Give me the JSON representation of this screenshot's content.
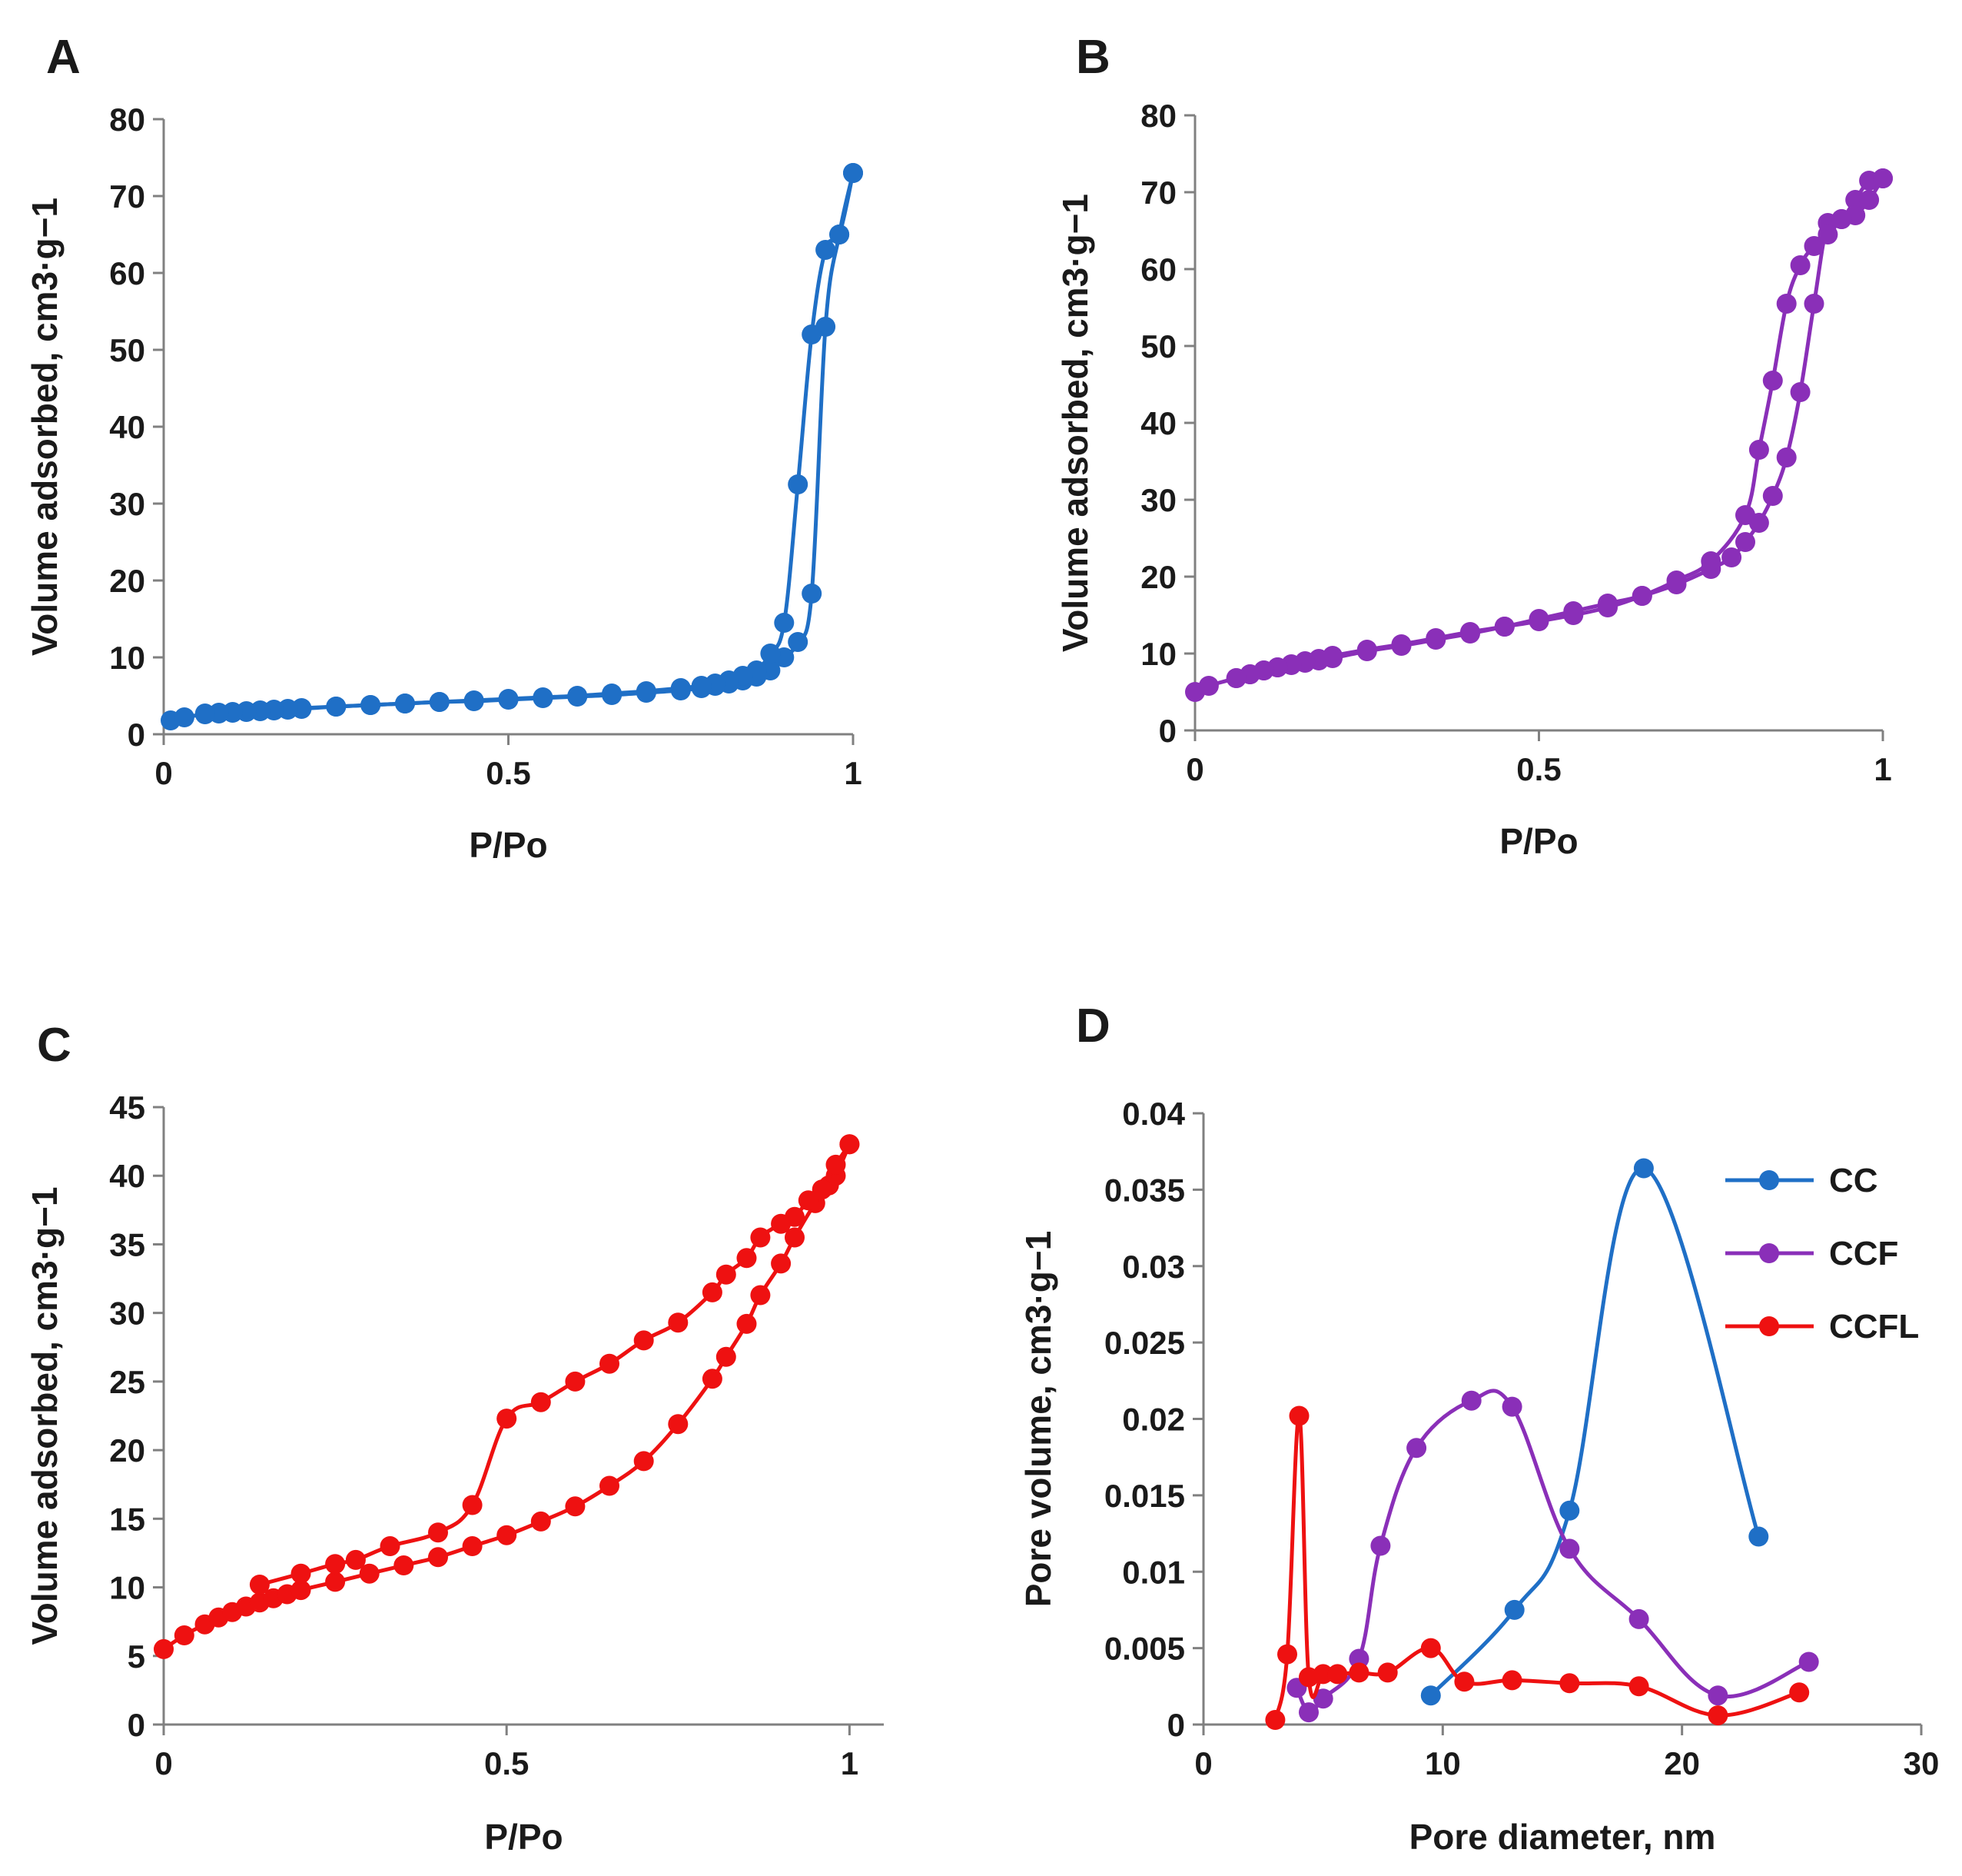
{
  "chart_data": [
    {
      "panel": "A",
      "type": "scatter",
      "xlabel": "P/Po",
      "ylabel": "Volume adsorbed, cm3·g−1",
      "xlim": [
        0,
        1
      ],
      "ylim": [
        0,
        80
      ],
      "xticks": [
        "0",
        "0.5",
        "1"
      ],
      "yticks": [
        "0",
        "10",
        "20",
        "30",
        "40",
        "50",
        "60",
        "70",
        "80"
      ],
      "color": "#1f6fc6",
      "series": [
        {
          "x": [
            0.01,
            0.03,
            0.06,
            0.08,
            0.1,
            0.12,
            0.14,
            0.16,
            0.18,
            0.2,
            0.25,
            0.3,
            0.35,
            0.4,
            0.45,
            0.5,
            0.55,
            0.6,
            0.65,
            0.7,
            0.75,
            0.78,
            0.8,
            0.82,
            0.84,
            0.86,
            0.88,
            0.9,
            0.92,
            0.94,
            0.96,
            0.98,
            1.0
          ],
          "y": [
            1.8,
            2.2,
            2.6,
            2.7,
            2.8,
            2.9,
            3.0,
            3.1,
            3.2,
            3.3,
            3.6,
            3.8,
            4.0,
            4.2,
            4.3,
            4.5,
            4.7,
            4.9,
            5.1,
            5.4,
            5.7,
            6.0,
            6.3,
            6.6,
            7.0,
            7.5,
            8.3,
            10.0,
            12.0,
            18.3,
            53.0,
            65.0,
            73.0
          ]
        },
        {
          "x": [
            1.0,
            0.98,
            0.96,
            0.94,
            0.92,
            0.9,
            0.88,
            0.86,
            0.84,
            0.82,
            0.8,
            0.78,
            0.75,
            0.7,
            0.65,
            0.6,
            0.55,
            0.5,
            0.45,
            0.4,
            0.35,
            0.3,
            0.25,
            0.2,
            0.18,
            0.16,
            0.14,
            0.12,
            0.1,
            0.08,
            0.06
          ],
          "y": [
            73.0,
            65.0,
            63.0,
            52.0,
            32.5,
            14.5,
            10.5,
            8.3,
            7.6,
            7.0,
            6.6,
            6.3,
            6.0,
            5.6,
            5.3,
            5.0,
            4.8,
            4.6,
            4.4,
            4.2,
            4.0,
            3.8,
            3.6,
            3.4,
            3.3,
            3.2,
            3.1,
            3.0,
            2.9,
            2.8,
            2.7
          ]
        }
      ]
    },
    {
      "panel": "B",
      "type": "scatter",
      "xlabel": "P/Po",
      "ylabel": "Volume adsorbed, cm3·g−1",
      "xlim": [
        0,
        1
      ],
      "ylim": [
        0,
        80
      ],
      "xticks": [
        "0",
        "0.5",
        "1"
      ],
      "yticks": [
        "0",
        "10",
        "20",
        "30",
        "40",
        "50",
        "60",
        "70",
        "80"
      ],
      "color": "#8a2fb8",
      "series": [
        {
          "x": [
            0.0,
            0.02,
            0.06,
            0.08,
            0.1,
            0.12,
            0.14,
            0.16,
            0.18,
            0.2,
            0.25,
            0.3,
            0.35,
            0.4,
            0.45,
            0.5,
            0.55,
            0.6,
            0.65,
            0.7,
            0.75,
            0.78,
            0.8,
            0.82,
            0.84,
            0.86,
            0.88,
            0.9,
            0.92,
            0.94,
            0.96,
            0.98,
            1.0
          ],
          "y": [
            5.0,
            5.8,
            6.8,
            7.3,
            7.8,
            8.2,
            8.5,
            8.8,
            9.1,
            9.4,
            10.3,
            11.0,
            11.8,
            12.6,
            13.5,
            14.5,
            15.5,
            16.5,
            17.5,
            19.0,
            21.0,
            22.5,
            24.5,
            27.0,
            30.5,
            35.5,
            44.0,
            55.5,
            66.0,
            66.5,
            69.0,
            71.5,
            71.8
          ]
        },
        {
          "x": [
            1.0,
            0.98,
            0.96,
            0.94,
            0.92,
            0.9,
            0.88,
            0.86,
            0.84,
            0.82,
            0.8,
            0.75,
            0.7,
            0.65,
            0.6,
            0.55,
            0.5,
            0.45,
            0.4,
            0.35,
            0.3,
            0.25,
            0.2,
            0.18,
            0.16,
            0.14,
            0.12,
            0.1,
            0.08,
            0.06
          ],
          "y": [
            71.8,
            69.0,
            67.0,
            66.5,
            64.5,
            63.0,
            60.5,
            55.5,
            45.5,
            36.5,
            28.0,
            22.0,
            19.5,
            17.5,
            16.0,
            15.0,
            14.2,
            13.5,
            12.8,
            12.0,
            11.2,
            10.5,
            9.7,
            9.3,
            9.0,
            8.6,
            8.2,
            7.8,
            7.3,
            6.8
          ]
        }
      ]
    },
    {
      "panel": "C",
      "type": "scatter",
      "xlabel": "P/Po",
      "ylabel": "Volume adsorbed, cm3·g−1",
      "xlim": [
        0,
        1.05
      ],
      "ylim": [
        0,
        45
      ],
      "xticks": [
        "0",
        "0.5",
        "1"
      ],
      "yticks": [
        "0",
        "5",
        "10",
        "15",
        "20",
        "25",
        "30",
        "35",
        "40",
        "45"
      ],
      "color": "#ee1111",
      "series": [
        {
          "x": [
            0.0,
            0.03,
            0.06,
            0.08,
            0.1,
            0.12,
            0.14,
            0.16,
            0.18,
            0.2,
            0.25,
            0.3,
            0.35,
            0.4,
            0.45,
            0.5,
            0.55,
            0.6,
            0.65,
            0.7,
            0.75,
            0.8,
            0.82,
            0.85,
            0.87,
            0.9,
            0.92,
            0.95,
            0.97,
            0.98,
            1.0
          ],
          "y": [
            5.5,
            6.5,
            7.3,
            7.8,
            8.2,
            8.6,
            8.9,
            9.2,
            9.5,
            9.8,
            10.4,
            11.0,
            11.6,
            12.2,
            13.0,
            13.8,
            14.8,
            15.9,
            17.4,
            19.2,
            21.9,
            25.2,
            26.8,
            29.2,
            31.3,
            33.6,
            35.5,
            38.0,
            39.3,
            40.0,
            42.3
          ]
        },
        {
          "x": [
            1.0,
            0.98,
            0.96,
            0.94,
            0.92,
            0.9,
            0.87,
            0.85,
            0.82,
            0.8,
            0.75,
            0.7,
            0.65,
            0.6,
            0.55,
            0.5,
            0.45,
            0.4,
            0.33,
            0.28,
            0.25,
            0.2,
            0.14
          ],
          "y": [
            42.3,
            40.8,
            39.0,
            38.2,
            37.0,
            36.5,
            35.5,
            34.0,
            32.8,
            31.5,
            29.3,
            28.0,
            26.3,
            25.0,
            23.5,
            22.3,
            16.0,
            14.0,
            13.0,
            12.0,
            11.7,
            11.0,
            10.2
          ]
        }
      ]
    },
    {
      "panel": "D",
      "type": "line",
      "xlabel": "Pore diameter, nm",
      "ylabel": "Pore volume, cm3·g−1",
      "xlim": [
        0,
        30
      ],
      "ylim": [
        0,
        0.04
      ],
      "xticks": [
        "0",
        "10",
        "20",
        "30"
      ],
      "yticks": [
        "0",
        "0.005",
        "0.01",
        "0.015",
        "0.02",
        "0.025",
        "0.03",
        "0.035",
        "0.04"
      ],
      "legend": "top-right",
      "series": [
        {
          "name": "CC",
          "color": "#1f6fc6",
          "x": [
            9.5,
            13.0,
            15.3,
            18.4,
            23.2
          ],
          "y": [
            0.0019,
            0.0075,
            0.014,
            0.0364,
            0.0123
          ]
        },
        {
          "name": "CCF",
          "color": "#8a2fb8",
          "x": [
            3.9,
            4.4,
            5.0,
            6.5,
            7.4,
            8.9,
            11.2,
            12.9,
            15.3,
            18.2,
            21.5,
            25.3
          ],
          "y": [
            0.0024,
            0.0008,
            0.0017,
            0.0043,
            0.0117,
            0.0181,
            0.0212,
            0.0208,
            0.0115,
            0.0069,
            0.0019,
            0.0041
          ]
        },
        {
          "name": "CCFL",
          "color": "#ee1111",
          "x": [
            3.0,
            3.5,
            4.0,
            4.4,
            5.0,
            5.6,
            6.5,
            7.7,
            9.5,
            10.9,
            12.9,
            15.3,
            18.2,
            21.5,
            24.9
          ],
          "y": [
            0.0003,
            0.0046,
            0.0202,
            0.0031,
            0.0033,
            0.0033,
            0.0034,
            0.0034,
            0.005,
            0.0028,
            0.0029,
            0.0027,
            0.0025,
            0.0006,
            0.0021
          ]
        }
      ]
    }
  ]
}
